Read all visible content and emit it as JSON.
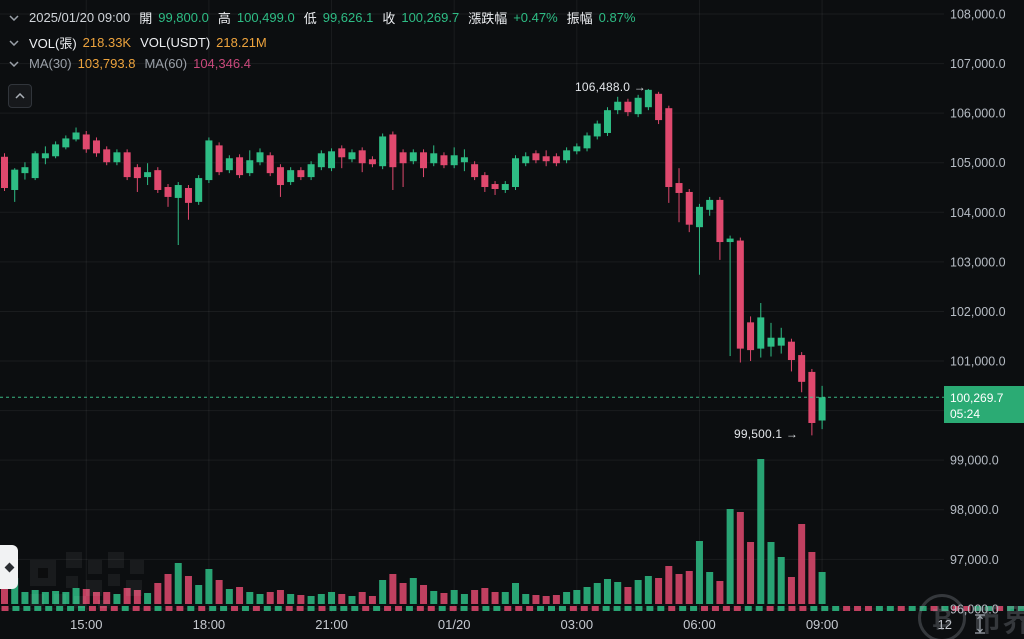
{
  "topbar": {
    "timestamp": "2025/01/20 09:00",
    "open_label": "開",
    "open": "99,800.0",
    "high_label": "高",
    "high": "100,499.0",
    "low_label": "低",
    "low": "99,626.1",
    "close_label": "收",
    "close": "100,269.7",
    "change_label": "漲跌幅",
    "change": "+0.47%",
    "amplitude_label": "振幅",
    "amplitude": "0.87%"
  },
  "volume_row": {
    "vol_label": "VOL(張)",
    "vol": "218.33K",
    "vol_usdt_label": "VOL(USDT)",
    "vol_usdt": "218.21M"
  },
  "ma_row": {
    "ma30_label": "MA(30)",
    "ma30": "103,793.8",
    "ma60_label": "MA(60)",
    "ma60": "104,346.4"
  },
  "price_badge": {
    "price": "100,269.7",
    "countdown": "05:24"
  },
  "annotations": {
    "high": "106,488.0 →",
    "low": "99,500.1 →"
  },
  "watermark": {
    "btc_symbol": "₿",
    "site_name": "币界网"
  },
  "colors": {
    "up": "#2ebd85",
    "down": "#e0496e",
    "badge": "#2bab74",
    "dashed_line": "#3ec98f",
    "grid": "rgba(255,255,255,0.06)",
    "axis_text": "#b6bcc4",
    "time_text": "#c6cad0"
  },
  "axis": {
    "price_labels": [
      {
        "text": "108,000.0",
        "value": 108000
      },
      {
        "text": "107,000.0",
        "value": 107000
      },
      {
        "text": "106,000.0",
        "value": 106000
      },
      {
        "text": "105,000.0",
        "value": 105000
      },
      {
        "text": "104,000.0",
        "value": 104000
      },
      {
        "text": "103,000.0",
        "value": 103000
      },
      {
        "text": "102,000.0",
        "value": 102000
      },
      {
        "text": "101,000.0",
        "value": 101000
      },
      {
        "text": "99,000.0",
        "value": 99000
      },
      {
        "text": "98,000.0",
        "value": 98000
      },
      {
        "text": "97,000.0",
        "value": 97000
      },
      {
        "text": "96,000.0",
        "value": 96000
      }
    ],
    "price_gridlines": [
      108000,
      107000,
      106000,
      105000,
      104000,
      103000,
      102000,
      101000,
      100000,
      99000,
      98000,
      97000,
      96000
    ],
    "time_labels": [
      {
        "text": "15:00",
        "candle_index": 8
      },
      {
        "text": "18:00",
        "candle_index": 20
      },
      {
        "text": "21:00",
        "candle_index": 32
      },
      {
        "text": "01/20",
        "candle_index": 44
      },
      {
        "text": "03:00",
        "candle_index": 56
      },
      {
        "text": "06:00",
        "candle_index": 68
      },
      {
        "text": "09:00",
        "candle_index": 80
      },
      {
        "text": "12",
        "candle_index": 92
      }
    ]
  },
  "chart_data": {
    "type": "candlestick",
    "interval": "15m",
    "price_range": [
      96000,
      108000
    ],
    "current_price": 100269.7,
    "high_annotation_value": 106488.0,
    "low_annotation_value": 99500.1,
    "candles": [
      [
        "13:00",
        105120,
        105190,
        104430,
        104490,
        22
      ],
      [
        "13:15",
        104450,
        104890,
        104210,
        104860,
        26
      ],
      [
        "13:30",
        104790,
        105010,
        104660,
        104910,
        12
      ],
      [
        "13:45",
        104690,
        105230,
        104650,
        105190,
        14
      ],
      [
        "14:00",
        105090,
        105330,
        104970,
        105190,
        12
      ],
      [
        "14:15",
        105130,
        105430,
        105090,
        105370,
        13
      ],
      [
        "14:30",
        105310,
        105550,
        105270,
        105490,
        12
      ],
      [
        "14:45",
        105470,
        105710,
        105430,
        105610,
        16
      ],
      [
        "15:00",
        105570,
        105640,
        105200,
        105270,
        15
      ],
      [
        "15:15",
        105450,
        105510,
        105120,
        105190,
        12
      ],
      [
        "15:30",
        105270,
        105330,
        104950,
        105010,
        12
      ],
      [
        "15:45",
        105010,
        105270,
        104950,
        105210,
        10
      ],
      [
        "16:00",
        105210,
        105270,
        104650,
        104710,
        16
      ],
      [
        "16:15",
        104910,
        104970,
        104410,
        104690,
        14
      ],
      [
        "16:30",
        104710,
        104990,
        104550,
        104810,
        11
      ],
      [
        "16:45",
        104850,
        104910,
        104390,
        104450,
        21
      ],
      [
        "17:00",
        104510,
        104570,
        104110,
        104310,
        30
      ],
      [
        "17:15",
        104290,
        104610,
        103340,
        104550,
        41
      ],
      [
        "17:30",
        104490,
        104550,
        103850,
        104190,
        28
      ],
      [
        "17:45",
        104210,
        104750,
        104150,
        104690,
        19
      ],
      [
        "18:00",
        104650,
        105510,
        104590,
        105450,
        35
      ],
      [
        "18:15",
        105350,
        105410,
        104750,
        104810,
        24
      ],
      [
        "18:30",
        104850,
        105150,
        104790,
        105090,
        15
      ],
      [
        "18:45",
        105110,
        105170,
        104690,
        104750,
        17
      ],
      [
        "19:00",
        104790,
        105250,
        104730,
        105050,
        12
      ],
      [
        "19:15",
        105010,
        105290,
        104950,
        105210,
        10
      ],
      [
        "19:30",
        105150,
        105210,
        104730,
        104790,
        12
      ],
      [
        "19:45",
        104910,
        104970,
        104310,
        104550,
        14
      ],
      [
        "20:00",
        104610,
        104910,
        104550,
        104850,
        10
      ],
      [
        "20:15",
        104850,
        104910,
        104650,
        104710,
        9
      ],
      [
        "20:30",
        104710,
        105030,
        104650,
        104970,
        8
      ],
      [
        "20:45",
        104910,
        105250,
        104850,
        105190,
        10
      ],
      [
        "21:00",
        104890,
        105290,
        104830,
        105230,
        12
      ],
      [
        "21:15",
        105290,
        105350,
        104890,
        105110,
        10
      ],
      [
        "21:30",
        105070,
        105270,
        105010,
        105210,
        8
      ],
      [
        "21:45",
        105250,
        105310,
        104810,
        104990,
        12
      ],
      [
        "22:00",
        105070,
        105130,
        104910,
        104970,
        8
      ],
      [
        "22:15",
        104930,
        105590,
        104870,
        105530,
        24
      ],
      [
        "22:30",
        105570,
        105630,
        104450,
        104910,
        30
      ],
      [
        "22:45",
        105210,
        105270,
        104510,
        104990,
        21
      ],
      [
        "23:00",
        105030,
        105270,
        104970,
        105210,
        26
      ],
      [
        "23:15",
        105210,
        105270,
        104710,
        104890,
        19
      ],
      [
        "23:30",
        104990,
        105350,
        104930,
        105190,
        13
      ],
      [
        "23:45",
        105150,
        105210,
        104890,
        104950,
        11
      ],
      [
        "00:00",
        104950,
        105310,
        104890,
        105150,
        14
      ],
      [
        "00:15",
        105010,
        105270,
        104830,
        105110,
        10
      ],
      [
        "00:30",
        104970,
        105030,
        104650,
        104710,
        14
      ],
      [
        "00:45",
        104750,
        104810,
        104410,
        104510,
        16
      ],
      [
        "01:00",
        104570,
        104630,
        104350,
        104470,
        12
      ],
      [
        "01:15",
        104450,
        104630,
        104390,
        104570,
        12
      ],
      [
        "01:30",
        104510,
        105150,
        104450,
        105090,
        21
      ],
      [
        "01:45",
        104990,
        105210,
        104930,
        105130,
        10
      ],
      [
        "02:00",
        105190,
        105250,
        104990,
        105050,
        9
      ],
      [
        "02:15",
        105130,
        105250,
        104930,
        105030,
        8
      ],
      [
        "02:30",
        105130,
        105190,
        104930,
        104990,
        9
      ],
      [
        "02:45",
        105050,
        105310,
        104990,
        105250,
        12
      ],
      [
        "03:00",
        105230,
        105390,
        105170,
        105330,
        14
      ],
      [
        "03:15",
        105290,
        105610,
        105230,
        105550,
        17
      ],
      [
        "03:30",
        105530,
        105850,
        105470,
        105790,
        21
      ],
      [
        "03:45",
        105600,
        106120,
        105540,
        106060,
        25
      ],
      [
        "04:00",
        106060,
        106330,
        105980,
        106230,
        22
      ],
      [
        "04:15",
        106230,
        106290,
        105940,
        106020,
        17
      ],
      [
        "04:30",
        105980,
        106370,
        105920,
        106310,
        24
      ],
      [
        "04:45",
        106120,
        106488,
        106060,
        106470,
        28
      ],
      [
        "05:00",
        106390,
        106430,
        105780,
        105860,
        26
      ],
      [
        "05:15",
        106100,
        106150,
        104190,
        104510,
        38
      ],
      [
        "05:30",
        104590,
        104890,
        103800,
        104390,
        30
      ],
      [
        "05:45",
        104410,
        104470,
        103600,
        103750,
        33
      ],
      [
        "06:00",
        103700,
        104170,
        102740,
        104110,
        63
      ],
      [
        "06:15",
        104050,
        104310,
        103930,
        104250,
        32
      ],
      [
        "06:30",
        104250,
        104310,
        103040,
        103400,
        23
      ],
      [
        "06:45",
        103400,
        103530,
        101100,
        103470,
        95
      ],
      [
        "07:00",
        103430,
        103490,
        100970,
        101250,
        92
      ],
      [
        "07:15",
        101780,
        101900,
        101000,
        101220,
        62
      ],
      [
        "07:30",
        101250,
        102170,
        101070,
        101880,
        145
      ],
      [
        "07:45",
        101290,
        101770,
        101090,
        101470,
        62
      ],
      [
        "08:00",
        101310,
        101670,
        101150,
        101470,
        47
      ],
      [
        "08:15",
        101390,
        101450,
        100790,
        101020,
        27
      ],
      [
        "08:30",
        101120,
        101180,
        100370,
        100580,
        80
      ],
      [
        "08:45",
        100780,
        100840,
        99500.1,
        99750,
        52
      ],
      [
        "09:00",
        99800,
        100499,
        99626.1,
        100269.7,
        32
      ]
    ],
    "strip_extra": [
      "u",
      "d",
      "u",
      "u",
      "d",
      "u",
      "d",
      "d",
      "u",
      "g",
      "d",
      "u",
      "u"
    ]
  }
}
